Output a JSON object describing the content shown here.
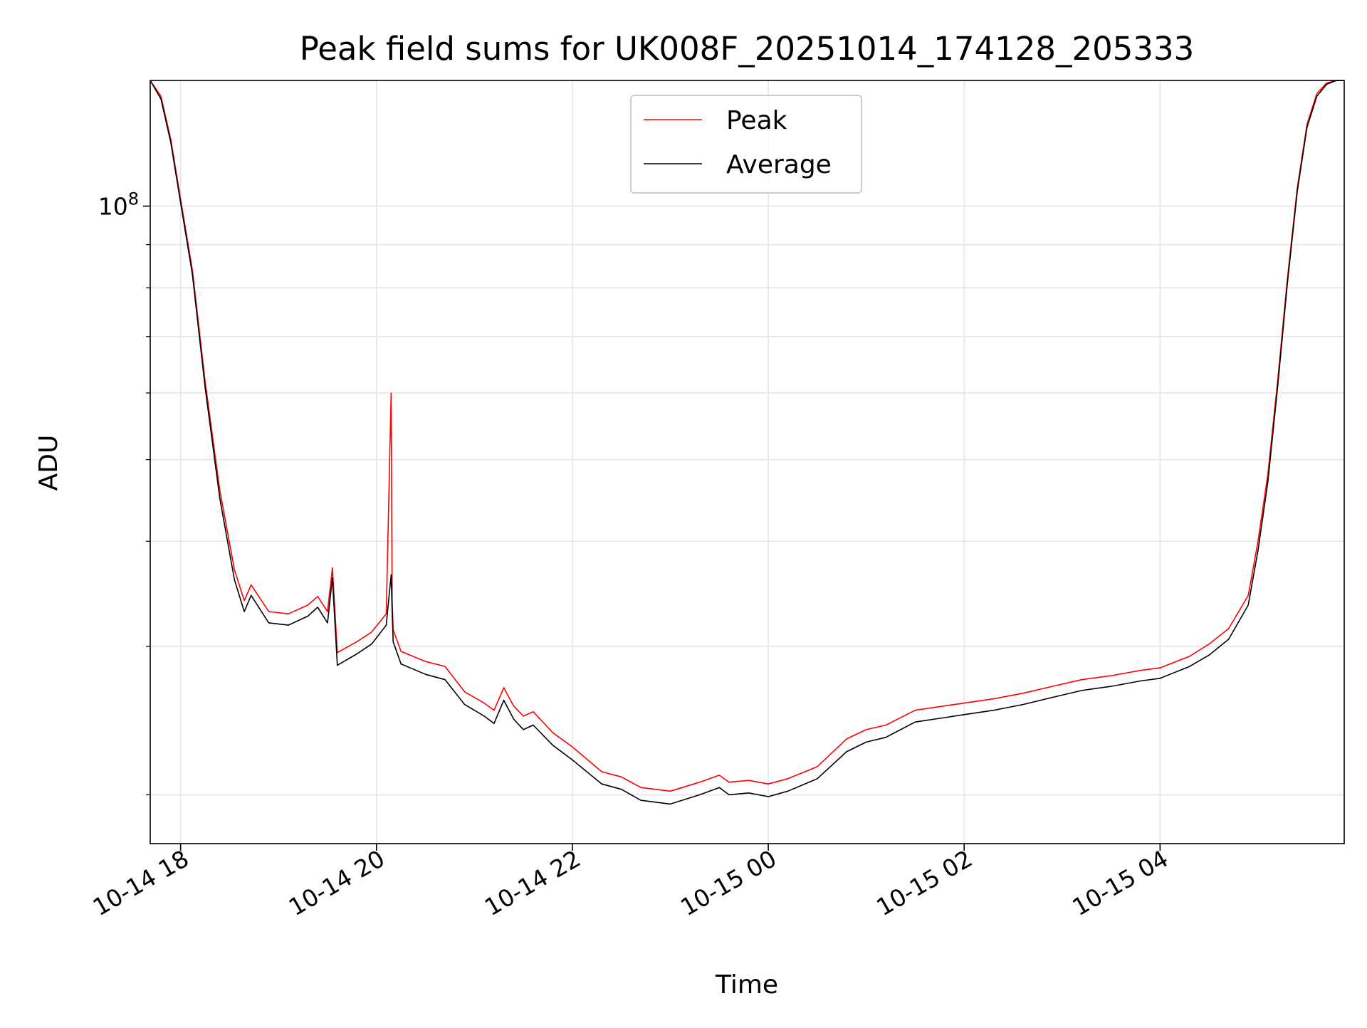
{
  "chart_data": {
    "type": "line",
    "title": "Peak field sums for UK008F_20251014_174128_205333",
    "xlabel": "Time",
    "ylabel": "ADU",
    "yscale": "log",
    "ylim": [
      17500000,
      141000000
    ],
    "xlim_hours": [
      17.69,
      29.88
    ],
    "x_tick_labels": [
      "10-14 18",
      "10-14 20",
      "10-14 22",
      "10-15 00",
      "10-15 02",
      "10-15 04"
    ],
    "x_tick_hours": [
      18,
      20,
      22,
      24,
      26,
      28
    ],
    "y_major_ticks": [
      {
        "value": 100000000,
        "base": "10",
        "exp": "8"
      }
    ],
    "grid": true,
    "legend": {
      "placement": "top-center",
      "entries": [
        {
          "label": "Peak",
          "color": "#ff0000"
        },
        {
          "label": "Average",
          "color": "#000000"
        }
      ]
    },
    "series": [
      {
        "name": "Peak",
        "color": "#ff0000",
        "x_hours": [
          17.69,
          17.8,
          17.9,
          18.0,
          18.12,
          18.25,
          18.4,
          18.55,
          18.65,
          18.72,
          18.9,
          19.1,
          19.3,
          19.4,
          19.5,
          19.55,
          19.6,
          19.8,
          19.95,
          20.1,
          20.15,
          20.16,
          20.17,
          20.25,
          20.5,
          20.7,
          20.9,
          21.1,
          21.2,
          21.3,
          21.4,
          21.5,
          21.6,
          21.8,
          22.0,
          22.3,
          22.5,
          22.7,
          23.0,
          23.3,
          23.5,
          23.6,
          23.8,
          24.0,
          24.2,
          24.5,
          24.8,
          25.0,
          25.2,
          25.5,
          25.8,
          26.0,
          26.3,
          26.6,
          26.9,
          27.2,
          27.5,
          27.8,
          28.0,
          28.3,
          28.5,
          28.7,
          28.9,
          29.0,
          29.1,
          29.2,
          29.3,
          29.4,
          29.5,
          29.6,
          29.7,
          29.8,
          29.88
        ],
        "values": [
          141000000,
          135000000,
          120000000,
          102000000,
          84000000,
          62000000,
          46000000,
          37000000,
          34000000,
          35500000,
          33000000,
          32800000,
          33600000,
          34400000,
          33000000,
          37200000,
          29500000,
          30400000,
          31200000,
          32800000,
          60000000,
          34000000,
          31400000,
          29600000,
          28800000,
          28400000,
          26500000,
          25700000,
          25200000,
          26800000,
          25500000,
          24800000,
          25100000,
          23700000,
          22800000,
          21300000,
          21000000,
          20400000,
          20200000,
          20700000,
          21100000,
          20700000,
          20800000,
          20600000,
          20900000,
          21600000,
          23300000,
          23900000,
          24200000,
          25200000,
          25500000,
          25700000,
          26000000,
          26400000,
          26900000,
          27400000,
          27700000,
          28100000,
          28300000,
          29200000,
          30200000,
          31500000,
          34500000,
          40000000,
          48000000,
          62000000,
          82000000,
          105000000,
          125000000,
          136000000,
          140000000,
          141000000,
          141000000
        ]
      },
      {
        "name": "Average",
        "color": "#000000",
        "x_hours": [
          17.69,
          17.8,
          17.9,
          18.0,
          18.12,
          18.25,
          18.4,
          18.55,
          18.65,
          18.72,
          18.9,
          19.1,
          19.3,
          19.4,
          19.5,
          19.55,
          19.6,
          19.8,
          19.95,
          20.1,
          20.15,
          20.16,
          20.17,
          20.25,
          20.5,
          20.7,
          20.9,
          21.1,
          21.2,
          21.3,
          21.4,
          21.5,
          21.6,
          21.8,
          22.0,
          22.3,
          22.5,
          22.7,
          23.0,
          23.3,
          23.5,
          23.6,
          23.8,
          24.0,
          24.2,
          24.5,
          24.8,
          25.0,
          25.2,
          25.5,
          25.8,
          26.0,
          26.3,
          26.6,
          26.9,
          27.2,
          27.5,
          27.8,
          28.0,
          28.3,
          28.5,
          28.7,
          28.9,
          29.0,
          29.1,
          29.2,
          29.3,
          29.4,
          29.5,
          29.6,
          29.7,
          29.8,
          29.88
        ],
        "values": [
          141000000,
          134000000,
          119000000,
          101000000,
          83000000,
          61000000,
          45000000,
          36000000,
          33000000,
          34500000,
          32000000,
          31800000,
          32600000,
          33400000,
          32000000,
          36200000,
          28500000,
          29400000,
          30200000,
          31800000,
          36500000,
          33000000,
          30400000,
          28600000,
          27800000,
          27400000,
          25600000,
          24800000,
          24300000,
          25900000,
          24600000,
          23900000,
          24200000,
          22900000,
          22000000,
          20600000,
          20300000,
          19700000,
          19500000,
          20000000,
          20400000,
          20000000,
          20100000,
          19900000,
          20200000,
          20900000,
          22500000,
          23100000,
          23400000,
          24400000,
          24700000,
          24900000,
          25200000,
          25600000,
          26100000,
          26600000,
          26900000,
          27300000,
          27500000,
          28400000,
          29300000,
          30600000,
          33600000,
          39000000,
          47000000,
          61000000,
          81000000,
          104000000,
          124000000,
          135000000,
          139500000,
          141000000,
          141000000
        ]
      }
    ]
  }
}
